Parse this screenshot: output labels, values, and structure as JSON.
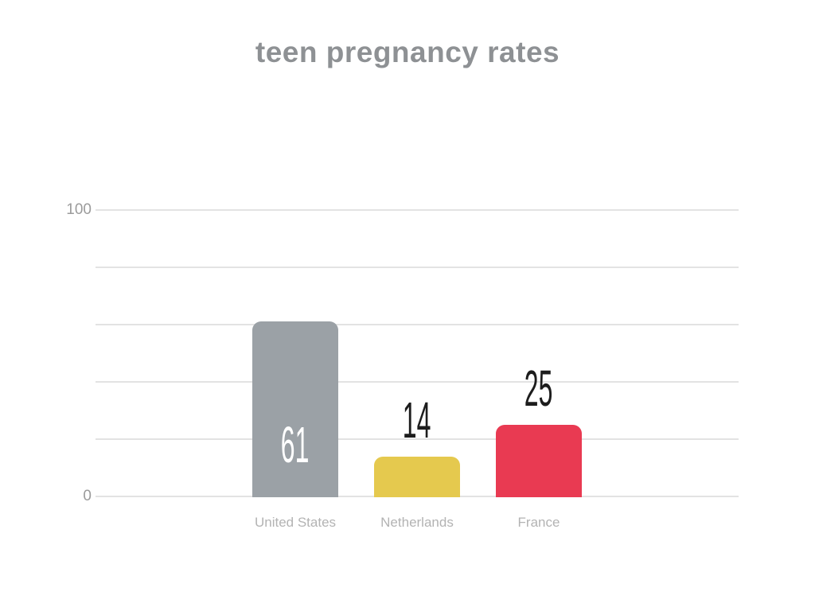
{
  "title": "teen pregnancy rates",
  "colors": {
    "background": "#ffffff",
    "title": "#8e9194",
    "gridline": "#e3e3e3",
    "tick_label": "#9b9b9b",
    "category_label": "#b3b3b3"
  },
  "chart_data": {
    "type": "bar",
    "title": "teen pregnancy rates",
    "categories": [
      "United States",
      "Netherlands",
      "France"
    ],
    "values": [
      61,
      14,
      25
    ],
    "value_labels": [
      "61",
      "14",
      "25"
    ],
    "bar_colors": [
      "#9ba1a6",
      "#e5c94e",
      "#e93a52"
    ],
    "value_label_colors": [
      "#ffffff",
      "#1d1d1d",
      "#1d1d1d"
    ],
    "value_label_placement": [
      "inside",
      "above",
      "above"
    ],
    "xlabel": "",
    "ylabel": "",
    "ylim": [
      0,
      100
    ],
    "gridline_step": 20,
    "ytick_labels": [
      {
        "value": 100,
        "label": "100"
      },
      {
        "value": 0,
        "label": "0"
      }
    ],
    "grid": true,
    "legend": false
  }
}
